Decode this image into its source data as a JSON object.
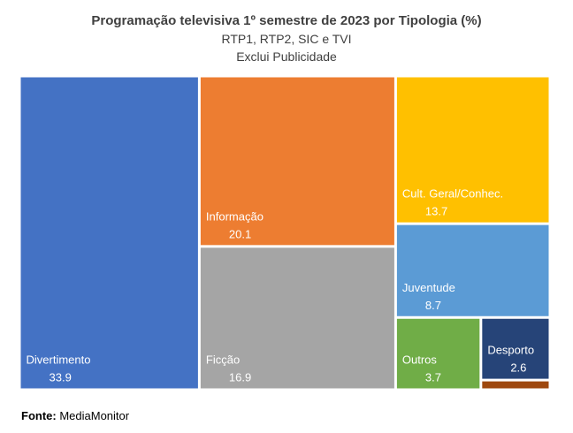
{
  "chart_data": {
    "type": "treemap",
    "title": "Programação televisiva 1º semestre de 2023 por Tipologia (%)",
    "subtitle_lines": [
      "RTP1, RTP2, SIC e TVI",
      "Exclui Publicidade"
    ],
    "items": [
      {
        "label": "Divertimento",
        "value": 33.9,
        "color": "#4472C4"
      },
      {
        "label": "Informação",
        "value": 20.1,
        "color": "#ED7D31"
      },
      {
        "label": "Ficção",
        "value": 16.9,
        "color": "#A5A5A5"
      },
      {
        "label": "Cult. Geral/Conhec.",
        "value": 13.7,
        "color": "#FFC000"
      },
      {
        "label": "Juventude",
        "value": 8.7,
        "color": "#5B9BD5"
      },
      {
        "label": "Outros",
        "value": 3.7,
        "color": "#70AD47"
      },
      {
        "label": "Desporto",
        "value": 2.6,
        "color": "#264478"
      },
      {
        "label": "",
        "value": 0.4,
        "color": "#9E480E"
      }
    ]
  },
  "source": {
    "label": "Fonte:",
    "text": "MediaMonitor"
  }
}
